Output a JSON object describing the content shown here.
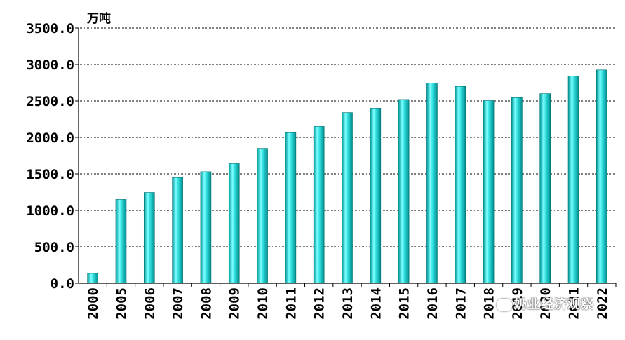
{
  "chart_data": {
    "type": "bar",
    "categories": [
      "2000",
      "2005",
      "2006",
      "2007",
      "2008",
      "2009",
      "2010",
      "2011",
      "2012",
      "2013",
      "2014",
      "2015",
      "2016",
      "2017",
      "2018",
      "2019",
      "2020",
      "2021",
      "2022"
    ],
    "values": [
      135,
      1150,
      1245,
      1450,
      1530,
      1640,
      1850,
      2065,
      2150,
      2340,
      2400,
      2520,
      2745,
      2700,
      2505,
      2545,
      2600,
      2840,
      2925
    ],
    "ylabel": "万吨",
    "ylim": [
      0,
      3500
    ],
    "yticks": [
      "0.0",
      "500.0",
      "1000.0",
      "1500.0",
      "2000.0",
      "2500.0",
      "3000.0",
      "3500.0"
    ],
    "grid": true,
    "bar_color": "#00c8c8",
    "bar_highlight": "#b8ffff"
  },
  "watermark": "奶业经济观察",
  "watermark_icon": "wechat-icon"
}
